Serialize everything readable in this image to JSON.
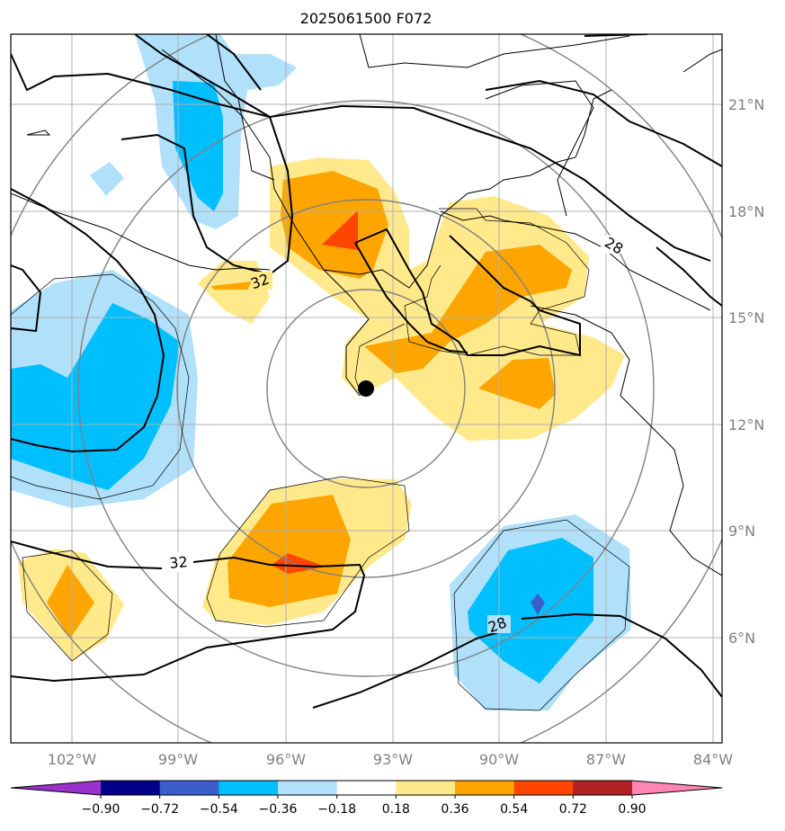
{
  "chart_data": {
    "type": "heatmap",
    "title": "2025061500 F072",
    "x_ticks": [
      "102°W",
      "99°W",
      "96°W",
      "93°W",
      "90°W",
      "87°W",
      "84°W"
    ],
    "y_ticks": [
      "21°N",
      "18°N",
      "15°N",
      "12°N",
      "9°N",
      "6°N"
    ],
    "colorbar": {
      "levels": [
        "−0.90",
        "−0.72",
        "−0.54",
        "−0.36",
        "−0.18",
        "0.18",
        "0.36",
        "0.54",
        "0.72",
        "0.90"
      ],
      "colors": [
        "#9932cc",
        "#00008b",
        "#3a5fcd",
        "#00bfff",
        "#b0e0fa",
        "#ffffff",
        "#ffe98a",
        "#ffa500",
        "#ff4500",
        "#b22222",
        "#ff85b3"
      ]
    },
    "contour_labels": [
      "32",
      "28",
      "32",
      "28"
    ],
    "marker": "center-point",
    "range_rings": "concentric",
    "grid": true
  }
}
